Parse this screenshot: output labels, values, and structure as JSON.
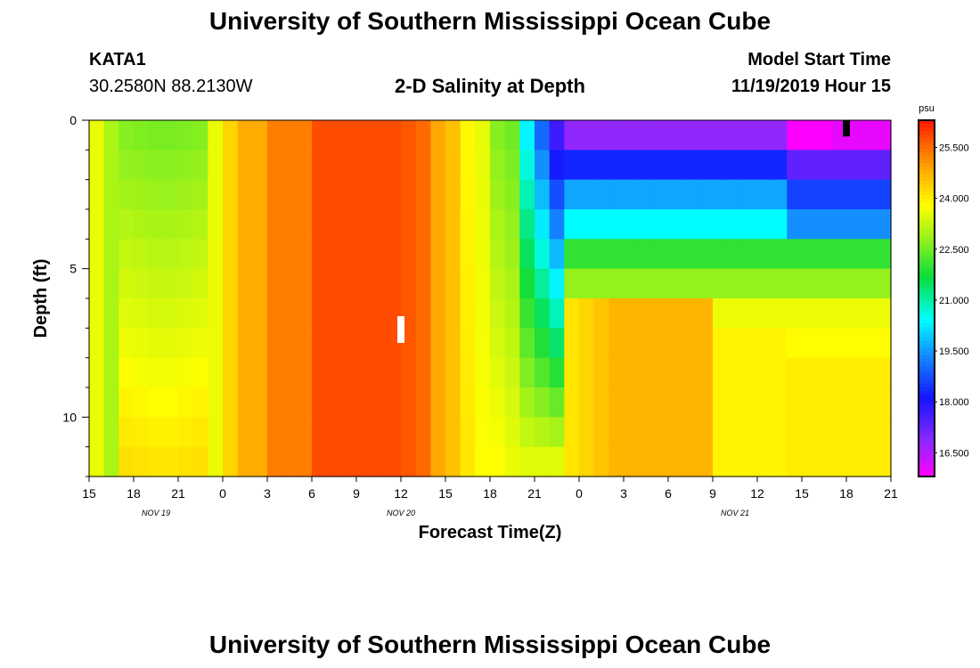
{
  "header": {
    "title": "University of Southern Mississippi Ocean Cube",
    "station": "KATA1",
    "coordinates": "30.2580N 88.2130W",
    "subtitle": "2-D Salinity at Depth",
    "start_label": "Model Start Time",
    "start_value": "11/19/2019 Hour 15"
  },
  "footer": {
    "title": "University of Southern Mississippi Ocean Cube"
  },
  "chart_data": {
    "type": "heatmap",
    "title": "2-D Salinity at Depth",
    "xlabel": "Forecast Time(Z)",
    "ylabel": "Depth (ft)",
    "x_hours_range": [
      0,
      54
    ],
    "y_range_ft": [
      0,
      12
    ],
    "x_tick_labels": [
      "15",
      "18",
      "21",
      "0",
      "3",
      "6",
      "9",
      "12",
      "15",
      "18",
      "21",
      "0",
      "3",
      "6",
      "9",
      "12",
      "15",
      "18",
      "21"
    ],
    "date_labels": [
      {
        "text": "NOV 19",
        "hour": 4.5
      },
      {
        "text": "NOV 20",
        "hour": 21
      },
      {
        "text": "NOV 21",
        "hour": 43.5
      }
    ],
    "y_tick_labels": [
      "0",
      "5",
      "10"
    ],
    "y_tick_values": [
      0,
      5,
      10
    ],
    "colorbar": {
      "unit": "psu",
      "min": 15.8,
      "max": 26.3,
      "tick_labels": [
        "16.500",
        "18.000",
        "19.500",
        "21.000",
        "22.500",
        "24.000",
        "25.500"
      ],
      "tick_values": [
        16.5,
        18.0,
        19.5,
        21.0,
        22.5,
        24.0,
        25.5
      ]
    },
    "depth_levels": 12,
    "time_steps": 54,
    "markers": [
      {
        "name": "white-marker",
        "hour": 21,
        "depth_from": 6.6,
        "depth_to": 7.5,
        "color": "#ffffff"
      },
      {
        "name": "black-marker",
        "hour": 51,
        "depth_from": 0.0,
        "depth_to": 0.55,
        "color": "#000000"
      }
    ],
    "profile_description_values": {
      "early_left_green_min": 22.6,
      "center_red_max": 25.9,
      "surface_min": 16.0
    }
  }
}
